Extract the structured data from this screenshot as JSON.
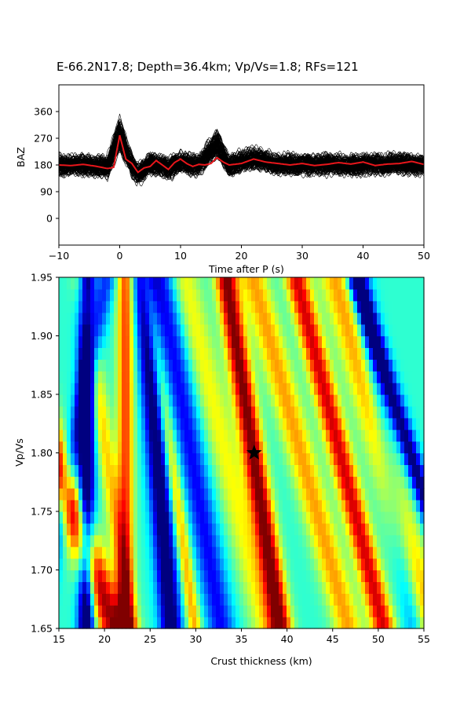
{
  "chart_data": [
    {
      "type": "line",
      "title": "E-66.2N17.8; Depth=36.4km; Vp/Vs=1.8; RFs=121",
      "xlabel": "Time after P (s)",
      "ylabel": "BAZ",
      "xlim": [
        -10,
        50
      ],
      "ylim": [
        -90,
        450
      ],
      "x_ticks": [
        -10,
        0,
        10,
        20,
        30,
        40,
        50
      ],
      "y_ticks": [
        0,
        90,
        180,
        270,
        360
      ],
      "grid": false,
      "trace_count": 121,
      "series": [
        {
          "color": "#000000",
          "baseline": 180,
          "x": [
            -10,
            -5,
            -2,
            0,
            1,
            2,
            3,
            5,
            8,
            10,
            13,
            16,
            18,
            22,
            25,
            30,
            35,
            40,
            45,
            50
          ],
          "y": [
            180,
            180,
            172,
            290,
            230,
            180,
            150,
            185,
            170,
            190,
            178,
            255,
            175,
            205,
            185,
            180,
            182,
            180,
            185,
            180
          ]
        },
        {
          "color": "#e8161b",
          "baseline": 180,
          "x": [
            -10,
            -8,
            -6,
            -4,
            -2,
            -1,
            0,
            0.5,
            1,
            2,
            3,
            4,
            5,
            6,
            7,
            8,
            9,
            10,
            11,
            12,
            13,
            14,
            15,
            16,
            17,
            18,
            20,
            22,
            24,
            26,
            28,
            30,
            32,
            34,
            36,
            38,
            40,
            42,
            44,
            46,
            48,
            50
          ],
          "y": [
            180,
            178,
            182,
            176,
            168,
            172,
            280,
            240,
            200,
            185,
            155,
            170,
            175,
            195,
            180,
            165,
            188,
            200,
            185,
            175,
            182,
            180,
            185,
            205,
            190,
            180,
            185,
            200,
            190,
            185,
            180,
            185,
            178,
            182,
            188,
            183,
            190,
            178,
            183,
            185,
            192,
            182
          ]
        }
      ]
    },
    {
      "type": "heatmap",
      "xlabel": "Crust thickness (km)",
      "ylabel": "Vp/Vs",
      "xlim": [
        15,
        55
      ],
      "ylim": [
        1.65,
        1.95
      ],
      "x_ticks": [
        15,
        20,
        25,
        30,
        35,
        40,
        45,
        50,
        55
      ],
      "y_ticks": [
        1.65,
        1.7,
        1.75,
        1.8,
        1.85,
        1.9,
        1.95
      ],
      "colormap": "jet",
      "best_fit": {
        "thickness": 36.4,
        "vpvs": 1.8,
        "marker": "star"
      }
    }
  ],
  "colors": {
    "median_trace": "#e8161b",
    "traces": "#000000",
    "star": "#000000"
  }
}
